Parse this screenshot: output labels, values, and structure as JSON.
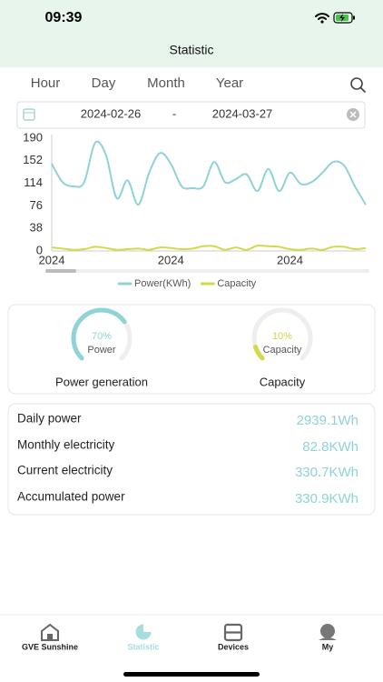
{
  "status": {
    "time": "09:39"
  },
  "header": {
    "title": "Statistic"
  },
  "tabs": [
    "Hour",
    "Day",
    "Month",
    "Year"
  ],
  "date_range": {
    "start": "2024-02-26",
    "separator": "-",
    "end": "2024-03-27"
  },
  "chart_data": {
    "type": "line",
    "categories": [
      "2024",
      null,
      null,
      null,
      null,
      null,
      null,
      null,
      null,
      null,
      null,
      "2024",
      null,
      null,
      null,
      null,
      null,
      null,
      null,
      null,
      null,
      null,
      "2024",
      null,
      null,
      null,
      null,
      null,
      null,
      null
    ],
    "series": [
      {
        "name": "Power(KWh)",
        "color": "#8fd3d6",
        "values": [
          147,
          116,
          109,
          116,
          182,
          162,
          89,
          119,
          78,
          132,
          165,
          147,
          109,
          106,
          109,
          150,
          116,
          121,
          129,
          101,
          138,
          101,
          132,
          113,
          116,
          132,
          150,
          144,
          109,
          78
        ]
      },
      {
        "name": "Capacity",
        "color": "#d4d94a",
        "values": [
          6,
          4,
          2,
          3,
          7,
          5,
          2,
          3,
          4,
          2,
          6,
          5,
          3,
          4,
          8,
          8,
          2,
          6,
          2,
          9,
          8,
          7,
          3,
          2,
          4,
          2,
          7,
          7,
          3,
          5
        ]
      }
    ],
    "ylim": [
      0,
      190
    ],
    "yticks": [
      0,
      38,
      76,
      114,
      152,
      190
    ],
    "grid": false,
    "legend": "bottom"
  },
  "gauges": [
    {
      "value": 70,
      "label": "70%",
      "name": "Power",
      "caption": "Power generation",
      "color": "#8fd3d6"
    },
    {
      "value": 10,
      "label": "10%",
      "name": "Capacity",
      "caption": "Capacity",
      "color": "#d4d94a"
    }
  ],
  "stats": [
    {
      "name": "Daily power",
      "value": "2939.1Wh"
    },
    {
      "name": "Monthly electricity",
      "value": "82.8KWh"
    },
    {
      "name": "Current electricity",
      "value": "330.7KWh"
    },
    {
      "name": "Accumulated power",
      "value": "330.9KWh"
    }
  ],
  "tabbar": [
    "GVE Sunshine",
    "Statistic",
    "Devices",
    "My"
  ]
}
